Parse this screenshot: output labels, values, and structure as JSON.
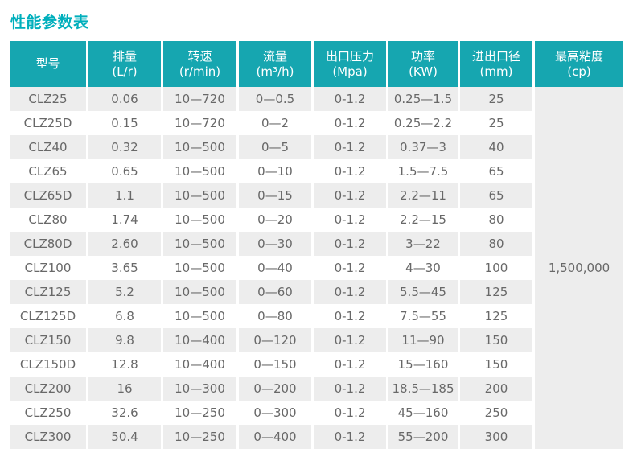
{
  "page": {
    "title": "性能参数表"
  },
  "colors": {
    "accent_teal": "#16A6B0",
    "title_teal": "#00AFBC",
    "row_alt_bg": "#EDEDED",
    "body_text": "#686868"
  },
  "chart_data": {
    "type": "table",
    "title": "性能参数表",
    "columns": [
      {
        "label": "型号",
        "unit": ""
      },
      {
        "label": "排量",
        "unit": "(L/r)"
      },
      {
        "label": "转速",
        "unit": "(r/min)"
      },
      {
        "label": "流量",
        "unit": "(m³/h)"
      },
      {
        "label": "出口压力",
        "unit": "(Mpa)"
      },
      {
        "label": "功率",
        "unit": "(KW)"
      },
      {
        "label": "进出口径",
        "unit": "(mm)"
      },
      {
        "label": "最高粘度",
        "unit": "(cp)"
      }
    ],
    "rows": [
      [
        "CLZ25",
        "0.06",
        "10—720",
        "0—0.5",
        "0-1.2",
        "0.25—1.5",
        "25"
      ],
      [
        "CLZ25D",
        "0.15",
        "10—720",
        "0—2",
        "0-1.2",
        "0.25—2.2",
        "25"
      ],
      [
        "CLZ40",
        "0.32",
        "10—500",
        "0—5",
        "0-1.2",
        "0.37—3",
        "40"
      ],
      [
        "CLZ65",
        "0.65",
        "10—500",
        "0—10",
        "0-1.2",
        "1.5—7.5",
        "65"
      ],
      [
        "CLZ65D",
        "1.1",
        "10—500",
        "0—15",
        "0-1.2",
        "2.2—11",
        "65"
      ],
      [
        "CLZ80",
        "1.74",
        "10—500",
        "0—20",
        "0-1.2",
        "2.2—15",
        "80"
      ],
      [
        "CLZ80D",
        "2.60",
        "10—500",
        "0—30",
        "0-1.2",
        "3—22",
        "80"
      ],
      [
        "CLZ100",
        "3.65",
        "10—500",
        "0—40",
        "0-1.2",
        "4—30",
        "100"
      ],
      [
        "CLZ125",
        "5.2",
        "10—500",
        "0—60",
        "0-1.2",
        "5.5—45",
        "125"
      ],
      [
        "CLZ125D",
        "6.8",
        "10—500",
        "0—80",
        "0-1.2",
        "7.5—55",
        "125"
      ],
      [
        "CLZ150",
        "9.8",
        "10—400",
        "0—120",
        "0-1.2",
        "11—90",
        "150"
      ],
      [
        "CLZ150D",
        "12.8",
        "10—400",
        "0—150",
        "0-1.2",
        "15—160",
        "150"
      ],
      [
        "CLZ200",
        "16",
        "10—300",
        "0—200",
        "0-1.2",
        "18.5—185",
        "200"
      ],
      [
        "CLZ250",
        "32.6",
        "10—250",
        "0—300",
        "0-1.2",
        "45—160",
        "250"
      ],
      [
        "CLZ300",
        "50.4",
        "10—250",
        "0—400",
        "0-1.2",
        "55—200",
        "300"
      ]
    ],
    "merged_last_column_value": "1,500,000",
    "layout": {
      "striped_rows": "odd rows shaded",
      "header_position": "top",
      "last_column_merged_vertically": true
    }
  }
}
